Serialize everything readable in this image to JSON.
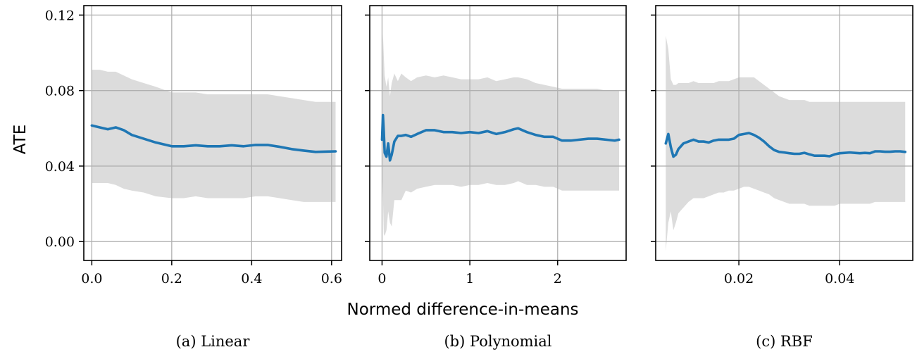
{
  "figure": {
    "ylabel": "ATE",
    "xlabel": "Normed difference-in-means"
  },
  "style": {
    "line_color": "#1f77b4",
    "band_color": "#dcdcdc",
    "grid_color": "#b0b0b0"
  },
  "chart_data": [
    {
      "type": "line",
      "caption": "(a) Linear",
      "xlim": [
        -0.02,
        0.625
      ],
      "ylim": [
        -0.01,
        0.125
      ],
      "xticks": [
        0.0,
        0.2,
        0.4,
        0.6
      ],
      "xtick_labels": [
        "0.0",
        "0.2",
        "0.4",
        "0.6"
      ],
      "yticks": [
        0.0,
        0.04,
        0.08,
        0.12
      ],
      "ytick_labels": [
        "0.00",
        "0.04",
        "0.08",
        "0.12"
      ],
      "grid": true,
      "x": [
        0.0,
        0.02,
        0.04,
        0.06,
        0.08,
        0.1,
        0.13,
        0.16,
        0.2,
        0.23,
        0.26,
        0.29,
        0.32,
        0.35,
        0.38,
        0.41,
        0.44,
        0.47,
        0.5,
        0.53,
        0.56,
        0.59,
        0.61
      ],
      "y": [
        0.0615,
        0.0605,
        0.0595,
        0.0605,
        0.059,
        0.0565,
        0.0545,
        0.0525,
        0.0505,
        0.0505,
        0.051,
        0.0505,
        0.0505,
        0.051,
        0.0505,
        0.0512,
        0.0512,
        0.0502,
        0.049,
        0.0482,
        0.0475,
        0.0477,
        0.0478
      ],
      "lower": [
        0.031,
        0.031,
        0.031,
        0.03,
        0.028,
        0.027,
        0.026,
        0.024,
        0.023,
        0.023,
        0.024,
        0.023,
        0.023,
        0.023,
        0.023,
        0.024,
        0.024,
        0.023,
        0.022,
        0.021,
        0.021,
        0.021,
        0.021
      ],
      "upper": [
        0.091,
        0.091,
        0.09,
        0.09,
        0.088,
        0.086,
        0.084,
        0.082,
        0.079,
        0.079,
        0.079,
        0.078,
        0.078,
        0.078,
        0.078,
        0.078,
        0.078,
        0.077,
        0.076,
        0.075,
        0.074,
        0.074,
        0.074
      ]
    },
    {
      "type": "line",
      "caption": "(b) Polynomial",
      "xlim": [
        -0.14,
        2.78
      ],
      "ylim": [
        -0.01,
        0.125
      ],
      "xticks": [
        0,
        1,
        2
      ],
      "xtick_labels": [
        "0",
        "1",
        "2"
      ],
      "yticks": [
        0.0,
        0.04,
        0.08,
        0.12
      ],
      "ytick_labels": [],
      "grid": true,
      "x": [
        0.0,
        0.01,
        0.02,
        0.03,
        0.05,
        0.07,
        0.09,
        0.11,
        0.14,
        0.18,
        0.22,
        0.27,
        0.33,
        0.4,
        0.5,
        0.6,
        0.7,
        0.8,
        0.9,
        1.0,
        1.1,
        1.2,
        1.3,
        1.4,
        1.5,
        1.55,
        1.65,
        1.75,
        1.85,
        1.95,
        2.05,
        2.15,
        2.25,
        2.35,
        2.45,
        2.55,
        2.65,
        2.7
      ],
      "y": [
        0.054,
        0.067,
        0.058,
        0.047,
        0.045,
        0.052,
        0.043,
        0.046,
        0.053,
        0.056,
        0.056,
        0.0565,
        0.0555,
        0.057,
        0.059,
        0.059,
        0.058,
        0.058,
        0.0575,
        0.058,
        0.0575,
        0.0585,
        0.057,
        0.058,
        0.0595,
        0.06,
        0.058,
        0.0565,
        0.0555,
        0.0555,
        0.0535,
        0.0535,
        0.054,
        0.0545,
        0.0545,
        0.054,
        0.0535,
        0.054
      ],
      "lower": [
        0.04,
        0.025,
        0.004,
        0.003,
        0.006,
        0.016,
        0.01,
        0.008,
        0.022,
        0.022,
        0.022,
        0.027,
        0.026,
        0.028,
        0.029,
        0.03,
        0.03,
        0.03,
        0.029,
        0.03,
        0.03,
        0.031,
        0.03,
        0.03,
        0.031,
        0.032,
        0.03,
        0.03,
        0.029,
        0.029,
        0.027,
        0.027,
        0.027,
        0.027,
        0.027,
        0.027,
        0.027,
        0.027
      ],
      "upper": [
        0.069,
        0.11,
        0.098,
        0.088,
        0.082,
        0.087,
        0.077,
        0.084,
        0.089,
        0.085,
        0.089,
        0.087,
        0.085,
        0.087,
        0.088,
        0.087,
        0.088,
        0.087,
        0.086,
        0.086,
        0.086,
        0.087,
        0.085,
        0.086,
        0.087,
        0.087,
        0.086,
        0.084,
        0.083,
        0.082,
        0.081,
        0.081,
        0.081,
        0.081,
        0.081,
        0.08,
        0.08,
        0.08
      ]
    },
    {
      "type": "line",
      "caption": "(c) RBF",
      "xlim": [
        0.0035,
        0.0545
      ],
      "ylim": [
        -0.01,
        0.125
      ],
      "xticks": [
        0.02,
        0.04
      ],
      "xtick_labels": [
        "0.02",
        "0.04"
      ],
      "yticks": [
        0.0,
        0.04,
        0.08,
        0.12
      ],
      "ytick_labels": [],
      "grid": true,
      "x": [
        0.0055,
        0.006,
        0.0065,
        0.007,
        0.0075,
        0.008,
        0.009,
        0.01,
        0.011,
        0.012,
        0.013,
        0.014,
        0.015,
        0.016,
        0.017,
        0.018,
        0.019,
        0.02,
        0.021,
        0.022,
        0.023,
        0.024,
        0.025,
        0.026,
        0.027,
        0.028,
        0.029,
        0.03,
        0.031,
        0.032,
        0.033,
        0.034,
        0.035,
        0.036,
        0.037,
        0.038,
        0.039,
        0.04,
        0.041,
        0.042,
        0.043,
        0.044,
        0.045,
        0.046,
        0.047,
        0.048,
        0.049,
        0.05,
        0.051,
        0.052,
        0.053
      ],
      "y": [
        0.052,
        0.057,
        0.05,
        0.045,
        0.046,
        0.049,
        0.052,
        0.053,
        0.054,
        0.053,
        0.053,
        0.0525,
        0.0535,
        0.054,
        0.054,
        0.054,
        0.0545,
        0.0565,
        0.057,
        0.0575,
        0.0565,
        0.055,
        0.053,
        0.0505,
        0.0485,
        0.0475,
        0.0472,
        0.0468,
        0.0465,
        0.0465,
        0.047,
        0.0462,
        0.0455,
        0.0455,
        0.0455,
        0.0452,
        0.0462,
        0.0468,
        0.047,
        0.0472,
        0.047,
        0.0468,
        0.047,
        0.0468,
        0.0478,
        0.0478,
        0.0476,
        0.0476,
        0.0478,
        0.0478,
        0.0475
      ],
      "lower": [
        -0.005,
        0.01,
        0.016,
        0.006,
        0.01,
        0.015,
        0.018,
        0.021,
        0.023,
        0.023,
        0.023,
        0.024,
        0.025,
        0.026,
        0.026,
        0.027,
        0.027,
        0.028,
        0.029,
        0.029,
        0.028,
        0.027,
        0.026,
        0.025,
        0.023,
        0.022,
        0.021,
        0.02,
        0.02,
        0.02,
        0.02,
        0.019,
        0.019,
        0.019,
        0.019,
        0.019,
        0.019,
        0.02,
        0.02,
        0.02,
        0.02,
        0.02,
        0.02,
        0.02,
        0.021,
        0.021,
        0.021,
        0.021,
        0.021,
        0.021,
        0.021
      ],
      "upper": [
        0.109,
        0.102,
        0.086,
        0.083,
        0.083,
        0.084,
        0.084,
        0.084,
        0.085,
        0.084,
        0.084,
        0.084,
        0.084,
        0.085,
        0.085,
        0.085,
        0.086,
        0.087,
        0.087,
        0.087,
        0.087,
        0.085,
        0.083,
        0.081,
        0.079,
        0.077,
        0.076,
        0.075,
        0.075,
        0.075,
        0.075,
        0.074,
        0.074,
        0.074,
        0.074,
        0.074,
        0.074,
        0.074,
        0.074,
        0.074,
        0.074,
        0.074,
        0.074,
        0.074,
        0.074,
        0.074,
        0.074,
        0.074,
        0.074,
        0.074,
        0.074
      ]
    }
  ]
}
